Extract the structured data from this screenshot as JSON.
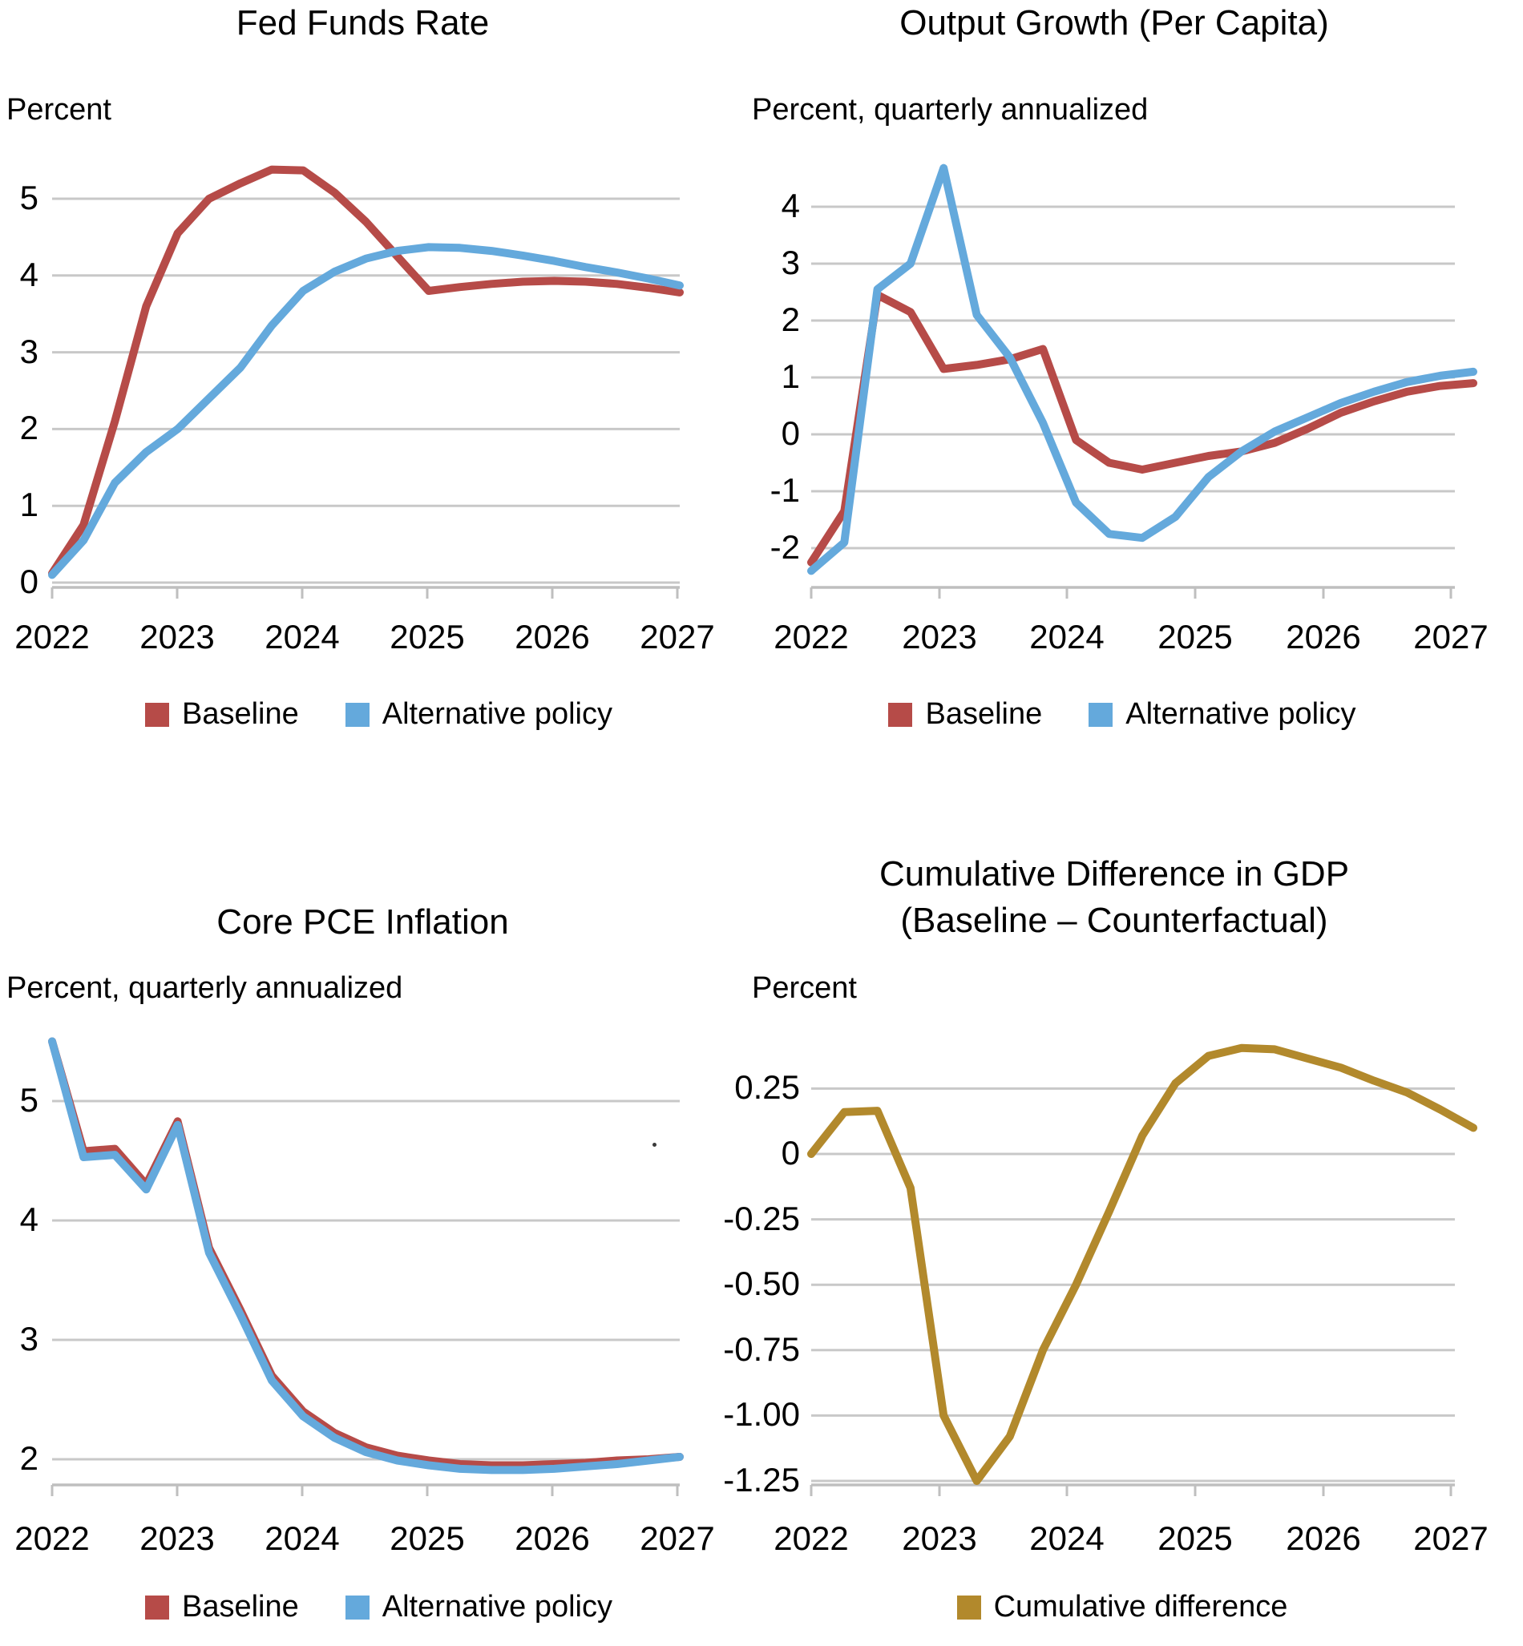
{
  "colors": {
    "baseline": "#B64B48",
    "alternative": "#64A9DC",
    "cumulative": "#B2892C",
    "gridline": "#C8C8C8",
    "axis": "#BFBFBF",
    "text": "#000000",
    "background": "#FFFFFF"
  },
  "chart_data": [
    {
      "id": "fed-funds-rate",
      "type": "line",
      "title": "Fed Funds Rate",
      "unit_label": "Percent",
      "x_start": "2022Q1",
      "x_end": "2027Q1",
      "x_frequency": "quarterly",
      "x_tick_labels": [
        "2022",
        "2023",
        "2024",
        "2025",
        "2026",
        "2027"
      ],
      "ylim": [
        0,
        5.6
      ],
      "grid": true,
      "legend_position": "bottom",
      "yticks": [
        {
          "v": 0,
          "label": "0"
        },
        {
          "v": 1,
          "label": "1"
        },
        {
          "v": 2,
          "label": "2"
        },
        {
          "v": 3,
          "label": "3"
        },
        {
          "v": 4,
          "label": "4"
        },
        {
          "v": 5,
          "label": "5"
        }
      ],
      "series": [
        {
          "name": "Baseline",
          "color_key": "baseline",
          "values": [
            0.12,
            0.75,
            2.1,
            3.6,
            4.55,
            5.0,
            5.2,
            5.38,
            5.37,
            5.08,
            4.7,
            4.25,
            3.8,
            3.85,
            3.89,
            3.92,
            3.93,
            3.92,
            3.89,
            3.84,
            3.78
          ]
        },
        {
          "name": "Alternative policy",
          "color_key": "alternative",
          "values": [
            0.1,
            0.55,
            1.3,
            1.7,
            2.0,
            2.4,
            2.8,
            3.35,
            3.8,
            4.05,
            4.22,
            4.32,
            4.37,
            4.36,
            4.32,
            4.26,
            4.19,
            4.11,
            4.04,
            3.96,
            3.87
          ]
        }
      ],
      "legend": [
        {
          "label": "Baseline",
          "color_key": "baseline"
        },
        {
          "label": "Alternative policy",
          "color_key": "alternative"
        }
      ]
    },
    {
      "id": "output-growth",
      "type": "line",
      "title": "Output Growth (Per Capita)",
      "unit_label": "Percent, quarterly annualized",
      "x_start": "2022Q1",
      "x_end": "2027Q1",
      "x_frequency": "quarterly",
      "x_tick_labels": [
        "2022",
        "2023",
        "2024",
        "2025",
        "2026",
        "2027"
      ],
      "ylim": [
        -2.6,
        4.8
      ],
      "grid": true,
      "legend_position": "bottom",
      "yticks": [
        {
          "v": -2,
          "label": "-2"
        },
        {
          "v": -1,
          "label": "-1"
        },
        {
          "v": 0,
          "label": "0"
        },
        {
          "v": 1,
          "label": "1"
        },
        {
          "v": 2,
          "label": "2"
        },
        {
          "v": 3,
          "label": "3"
        },
        {
          "v": 4,
          "label": "4"
        }
      ],
      "series": [
        {
          "name": "Baseline",
          "color_key": "baseline",
          "values": [
            -2.25,
            -1.35,
            2.45,
            2.15,
            1.15,
            1.22,
            1.32,
            1.5,
            -0.1,
            -0.5,
            -0.62,
            -0.5,
            -0.38,
            -0.3,
            -0.15,
            0.1,
            0.38,
            0.58,
            0.75,
            0.85,
            0.9
          ]
        },
        {
          "name": "Alternative policy",
          "color_key": "alternative",
          "values": [
            -2.4,
            -1.9,
            2.55,
            3.0,
            4.68,
            2.1,
            1.35,
            0.2,
            -1.2,
            -1.75,
            -1.82,
            -1.45,
            -0.75,
            -0.3,
            0.05,
            0.3,
            0.55,
            0.75,
            0.92,
            1.03,
            1.1
          ]
        }
      ],
      "legend": [
        {
          "label": "Baseline",
          "color_key": "baseline"
        },
        {
          "label": "Alternative policy",
          "color_key": "alternative"
        }
      ]
    },
    {
      "id": "core-pce-inflation",
      "type": "line",
      "title": "Core PCE Inflation",
      "unit_label": "Percent, quarterly annualized",
      "x_start": "2022Q1",
      "x_end": "2027Q1",
      "x_frequency": "quarterly",
      "x_tick_labels": [
        "2022",
        "2023",
        "2024",
        "2025",
        "2026",
        "2027"
      ],
      "ylim": [
        1.8,
        5.6
      ],
      "grid": true,
      "legend_position": "bottom",
      "yticks": [
        {
          "v": 2,
          "label": "2"
        },
        {
          "v": 3,
          "label": "3"
        },
        {
          "v": 4,
          "label": "4"
        },
        {
          "v": 5,
          "label": "5"
        }
      ],
      "series": [
        {
          "name": "Baseline",
          "color_key": "baseline",
          "values": [
            5.5,
            4.58,
            4.6,
            4.3,
            4.83,
            3.77,
            3.25,
            2.7,
            2.4,
            2.22,
            2.1,
            2.03,
            1.99,
            1.96,
            1.95,
            1.95,
            1.96,
            1.97,
            1.99,
            2.0,
            2.02
          ]
        },
        {
          "name": "Alternative policy",
          "color_key": "alternative",
          "values": [
            5.5,
            4.53,
            4.55,
            4.26,
            4.8,
            3.73,
            3.21,
            2.66,
            2.36,
            2.18,
            2.06,
            1.99,
            1.95,
            1.92,
            1.91,
            1.91,
            1.92,
            1.94,
            1.96,
            1.99,
            2.02
          ]
        }
      ],
      "legend": [
        {
          "label": "Baseline",
          "color_key": "baseline"
        },
        {
          "label": "Alternative policy",
          "color_key": "alternative"
        }
      ]
    },
    {
      "id": "cumulative-difference-gdp",
      "type": "line",
      "title": "Cumulative Difference in GDP\n(Baseline – Counterfactual)",
      "unit_label": "Percent",
      "x_start": "2022Q1",
      "x_end": "2027Q1",
      "x_frequency": "quarterly",
      "x_tick_labels": [
        "2022",
        "2023",
        "2024",
        "2025",
        "2026",
        "2027"
      ],
      "ylim": [
        -1.3,
        0.45
      ],
      "grid": true,
      "legend_position": "bottom",
      "yticks": [
        {
          "v": -1.25,
          "label": "-1.25"
        },
        {
          "v": -1.0,
          "label": "-1.00"
        },
        {
          "v": -0.75,
          "label": "-0.75"
        },
        {
          "v": -0.5,
          "label": "-0.50"
        },
        {
          "v": -0.25,
          "label": "-0.25"
        },
        {
          "v": 0,
          "label": "0"
        },
        {
          "v": 0.25,
          "label": "0.25"
        }
      ],
      "series": [
        {
          "name": "Cumulative difference",
          "color_key": "cumulative",
          "values": [
            0.0,
            0.16,
            0.165,
            -0.13,
            -1.0,
            -1.25,
            -1.08,
            -0.75,
            -0.5,
            -0.22,
            0.07,
            0.27,
            0.375,
            0.405,
            0.4,
            0.365,
            0.33,
            0.28,
            0.235,
            0.17,
            0.1
          ]
        }
      ],
      "legend": [
        {
          "label": "Cumulative difference",
          "color_key": "cumulative"
        }
      ]
    }
  ]
}
